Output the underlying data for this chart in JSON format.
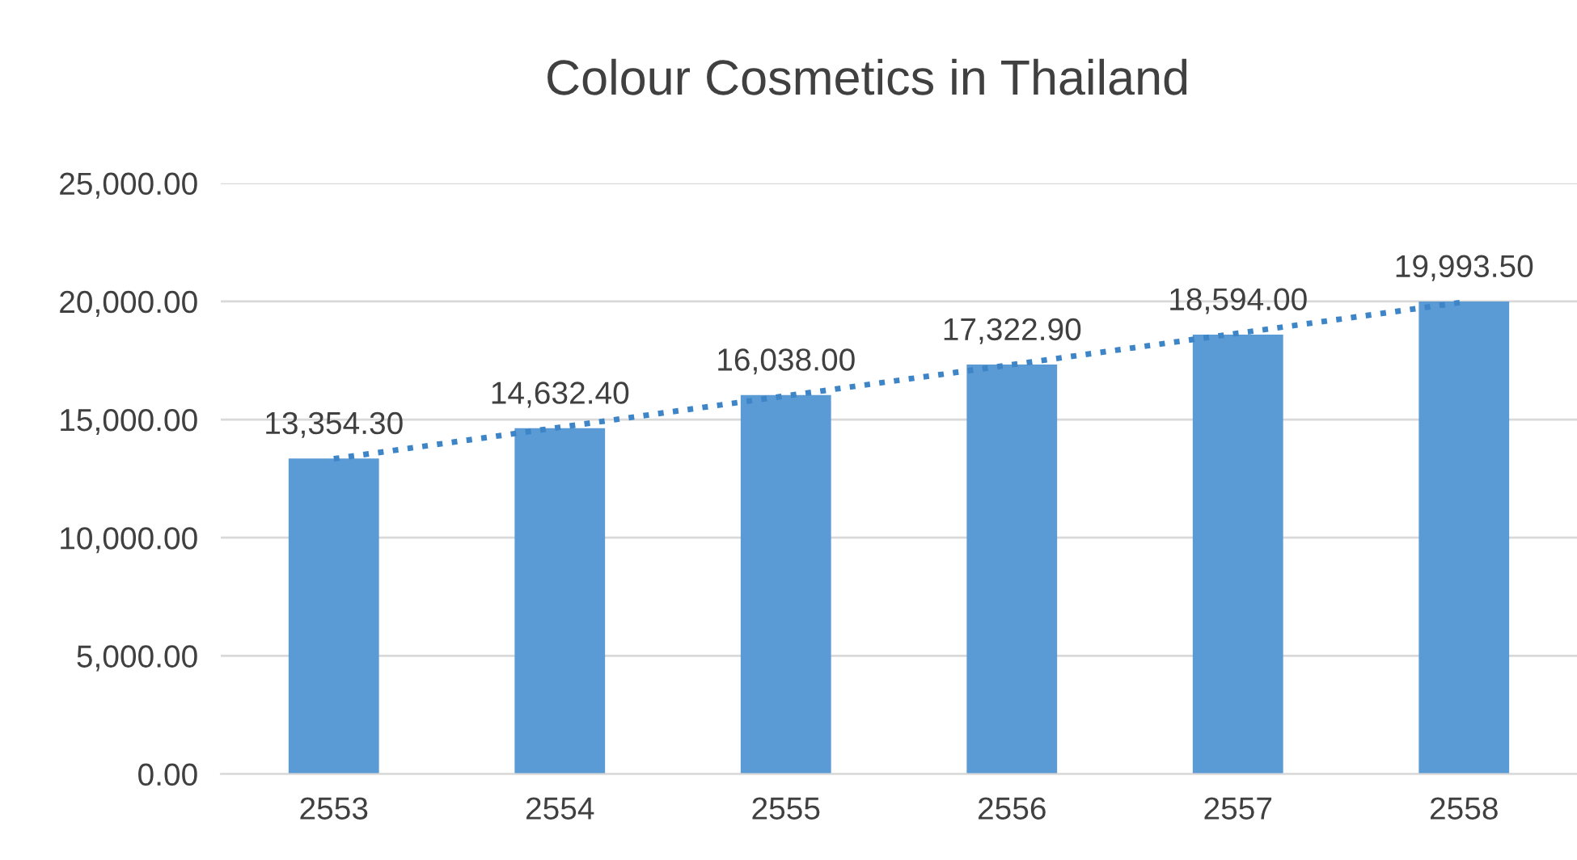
{
  "chart_data": {
    "type": "bar",
    "title": "Colour Cosmetics in Thailand",
    "categories": [
      "2553",
      "2554",
      "2555",
      "2556",
      "2557",
      "2558"
    ],
    "series": [
      {
        "color": "#5b9bd5",
        "values": [
          13354.3,
          14632.4,
          16038.0,
          17322.9,
          18594.0,
          19993.5
        ],
        "value_labels": [
          "13,354.30",
          "14,632.40",
          "16,038.00",
          "17,322.90",
          "18,594.00",
          "19,993.50"
        ]
      },
      {
        "type": "line",
        "color": "#3d85c6",
        "line_style": "dotted",
        "values": [
          13340,
          14670,
          16000,
          17320,
          18650,
          19970
        ]
      }
    ],
    "ylim": [
      0,
      25000
    ],
    "yticks": [
      {
        "value": 0,
        "label": "0.00"
      },
      {
        "value": 5000,
        "label": "5,000.00"
      },
      {
        "value": 10000,
        "label": "10,000.00"
      },
      {
        "value": 15000,
        "label": "15,000.00"
      },
      {
        "value": 20000,
        "label": "20,000.00"
      },
      {
        "value": 25000,
        "label": "25,000.00"
      }
    ],
    "grid": "y",
    "legend": false
  }
}
